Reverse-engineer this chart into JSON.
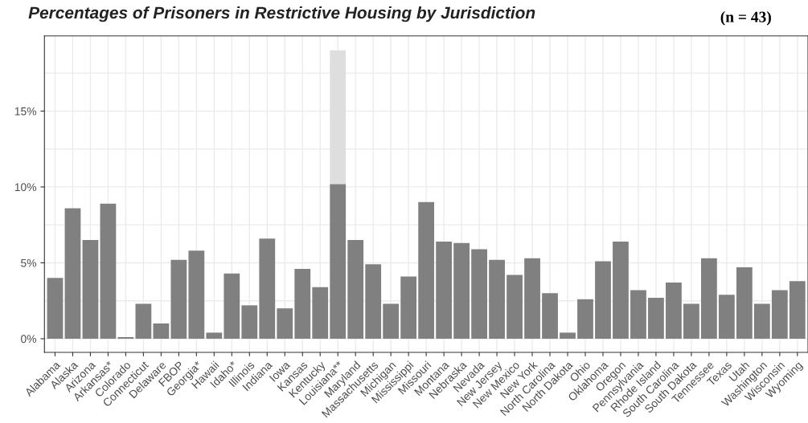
{
  "chart_data": {
    "type": "bar",
    "title": "Percentages of Prisoners in Restrictive Housing by Jurisdiction",
    "annotations": [
      "(n = 43)"
    ],
    "categories": [
      "Alabama",
      "Alaska",
      "Arizona",
      "Arkansas*",
      "Colorado",
      "Connecticut",
      "Delaware",
      "FBOP",
      "Georgia*",
      "Hawaii",
      "Idaho*",
      "Illinois",
      "Indiana",
      "Iowa",
      "Kansas",
      "Kentucky",
      "Louisiana**",
      "Maryland",
      "Massachusetts",
      "Michigan",
      "Mississippi",
      "Missouri",
      "Montana",
      "Nebraska",
      "Nevada",
      "New Jersey",
      "New Mexico",
      "New York",
      "North Carolina",
      "North Dakota",
      "Ohio",
      "Oklahoma",
      "Oregon",
      "Pennsylvania",
      "Rhode Island",
      "South Carolina",
      "South Dakota",
      "Tennessee",
      "Texas",
      "Utah",
      "Washington",
      "Wisconsin",
      "Wyoming"
    ],
    "stacked": true,
    "series": [
      {
        "color": "#808080",
        "values": [
          4.0,
          8.6,
          6.5,
          8.9,
          0.1,
          2.3,
          1.0,
          5.2,
          5.8,
          0.4,
          4.3,
          2.2,
          6.6,
          2.0,
          4.6,
          3.4,
          10.2,
          6.5,
          4.9,
          2.3,
          4.1,
          9.0,
          6.4,
          6.3,
          5.9,
          5.2,
          4.2,
          5.3,
          3.0,
          0.4,
          2.6,
          5.1,
          6.4,
          3.2,
          2.7,
          3.7,
          2.3,
          5.3,
          2.9,
          4.7,
          2.3,
          3.2,
          3.8
        ]
      },
      {
        "color": "#dedede",
        "values": [
          null,
          null,
          null,
          null,
          null,
          null,
          null,
          null,
          null,
          null,
          null,
          null,
          null,
          null,
          null,
          null,
          8.8,
          null,
          null,
          null,
          null,
          null,
          null,
          null,
          null,
          null,
          null,
          null,
          null,
          null,
          null,
          null,
          null,
          null,
          null,
          null,
          null,
          null,
          null,
          null,
          null,
          null,
          null
        ]
      }
    ],
    "ylim": [
      -0.9,
      19.95
    ],
    "yticks": [
      {
        "value": 0,
        "label": "0%"
      },
      {
        "value": 2.5,
        "label": null
      },
      {
        "value": 5,
        "label": "5%"
      },
      {
        "value": 7.5,
        "label": null
      },
      {
        "value": 10,
        "label": "10%"
      },
      {
        "value": 12.5,
        "label": null
      },
      {
        "value": 15,
        "label": "15%"
      },
      {
        "value": 17.5,
        "label": null
      }
    ],
    "grid": true,
    "legend": false
  }
}
